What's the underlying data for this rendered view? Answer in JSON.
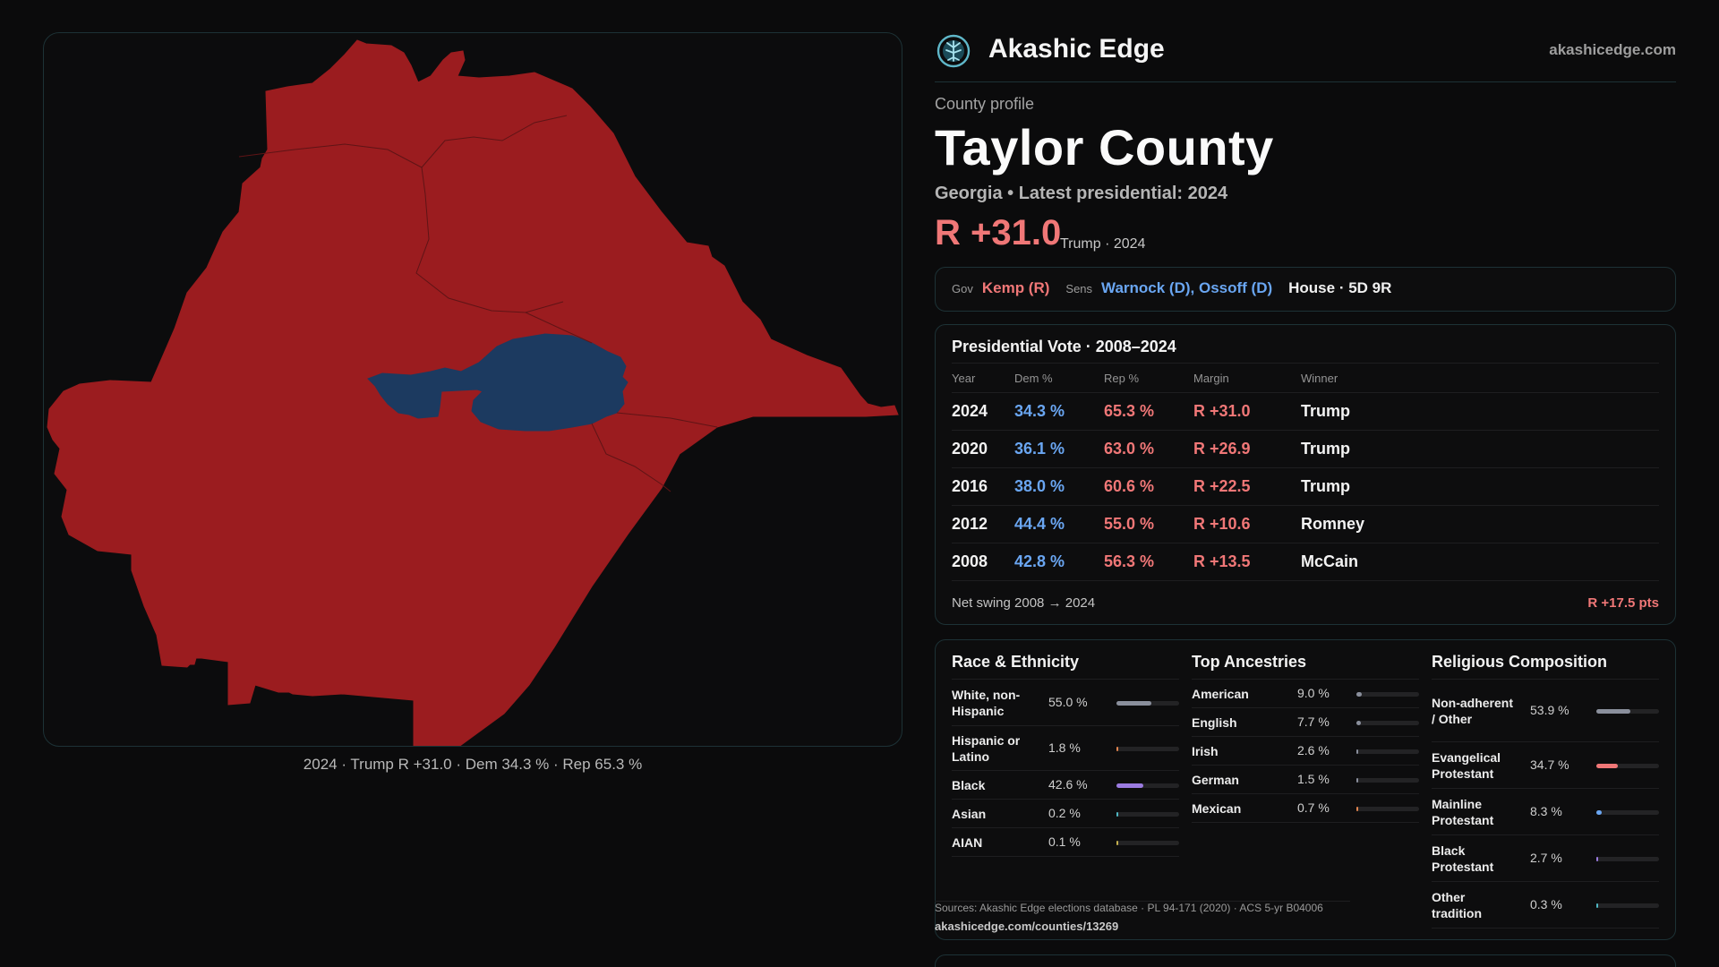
{
  "map": {
    "caption": "2024 · Trump R +31.0 · Dem 34.3 % · Rep 65.3 %",
    "rep_color": "#9b1c1f",
    "dem_color": "#1c3a60"
  },
  "brand": {
    "name": "Akashic Edge",
    "url": "akashicedge.com",
    "logo_icon": "tree-of-life-icon"
  },
  "county": {
    "eyebrow": "County profile",
    "name": "Taylor County",
    "subtitle": "Georgia • Latest presidential: 2024",
    "margin": "R +31.0",
    "margin_note": "Trump · 2024"
  },
  "officials": {
    "gov_label": "Gov",
    "gov": "Kemp (R)",
    "sens_label": "Sens",
    "sens": "Warnock (D), Ossoff (D)",
    "house": "House · 5D 9R"
  },
  "presidential": {
    "title": "Presidential Vote · 2008–2024",
    "headers": [
      "Year",
      "Dem %",
      "Rep %",
      "Margin",
      "Winner"
    ],
    "rows": [
      [
        "2024",
        "34.3 %",
        "65.3 %",
        "R +31.0",
        "Trump"
      ],
      [
        "2020",
        "36.1 %",
        "63.0 %",
        "R +26.9",
        "Trump"
      ],
      [
        "2016",
        "38.0 %",
        "60.6 %",
        "R +22.5",
        "Trump"
      ],
      [
        "2012",
        "44.4 %",
        "55.0 %",
        "R +10.6",
        "Romney"
      ],
      [
        "2008",
        "42.8 %",
        "56.3 %",
        "R +13.5",
        "McCain"
      ]
    ],
    "swing_label": "Net swing 2008 → 2024",
    "swing_value": "R +17.5 pts"
  },
  "race": {
    "title": "Race & Ethnicity",
    "items": [
      {
        "label": "White, non-Hispanic",
        "value": "55.0 %",
        "pct": 55.0,
        "color": "#8a8f9c"
      },
      {
        "label": "Hispanic or Latino",
        "value": "1.8 %",
        "pct": 1.8,
        "color": "#e0844f"
      },
      {
        "label": "Black",
        "value": "42.6 %",
        "pct": 42.6,
        "color": "#9b7be0"
      },
      {
        "label": "Asian",
        "value": "0.2 %",
        "pct": 0.2,
        "color": "#4fb8c4"
      },
      {
        "label": "AIAN",
        "value": "0.1 %",
        "pct": 0.1,
        "color": "#c4b04f"
      }
    ]
  },
  "ancestry": {
    "title": "Top Ancestries",
    "items": [
      {
        "label": "American",
        "value": "9.0 %",
        "pct": 9.0,
        "color": "#8a8f9c"
      },
      {
        "label": "English",
        "value": "7.7 %",
        "pct": 7.7,
        "color": "#8a8f9c"
      },
      {
        "label": "Irish",
        "value": "2.6 %",
        "pct": 2.6,
        "color": "#8a8f9c"
      },
      {
        "label": "German",
        "value": "1.5 %",
        "pct": 1.5,
        "color": "#8a8f9c"
      },
      {
        "label": "Mexican",
        "value": "0.7 %",
        "pct": 0.7,
        "color": "#e0844f"
      }
    ]
  },
  "religion": {
    "title": "Religious Composition",
    "items": [
      {
        "label": "Non-adherent / Other",
        "value": "53.9 %",
        "pct": 53.9,
        "color": "#8a8f9c"
      },
      {
        "label": "Evangelical Protestant",
        "value": "34.7 %",
        "pct": 34.7,
        "color": "#f07777"
      },
      {
        "label": "Mainline Protestant",
        "value": "8.3 %",
        "pct": 8.3,
        "color": "#6aa6f2"
      },
      {
        "label": "Black Protestant",
        "value": "2.7 %",
        "pct": 2.7,
        "color": "#9b7be0"
      },
      {
        "label": "Other tradition",
        "value": "0.3 %",
        "pct": 0.3,
        "color": "#4fb8c4"
      }
    ]
  },
  "sources": {
    "line": "Sources: Akashic Edge elections database · PL 94-171 (2020) · ACS 5-yr B04006",
    "url": "akashicedge.com/counties/13269"
  }
}
